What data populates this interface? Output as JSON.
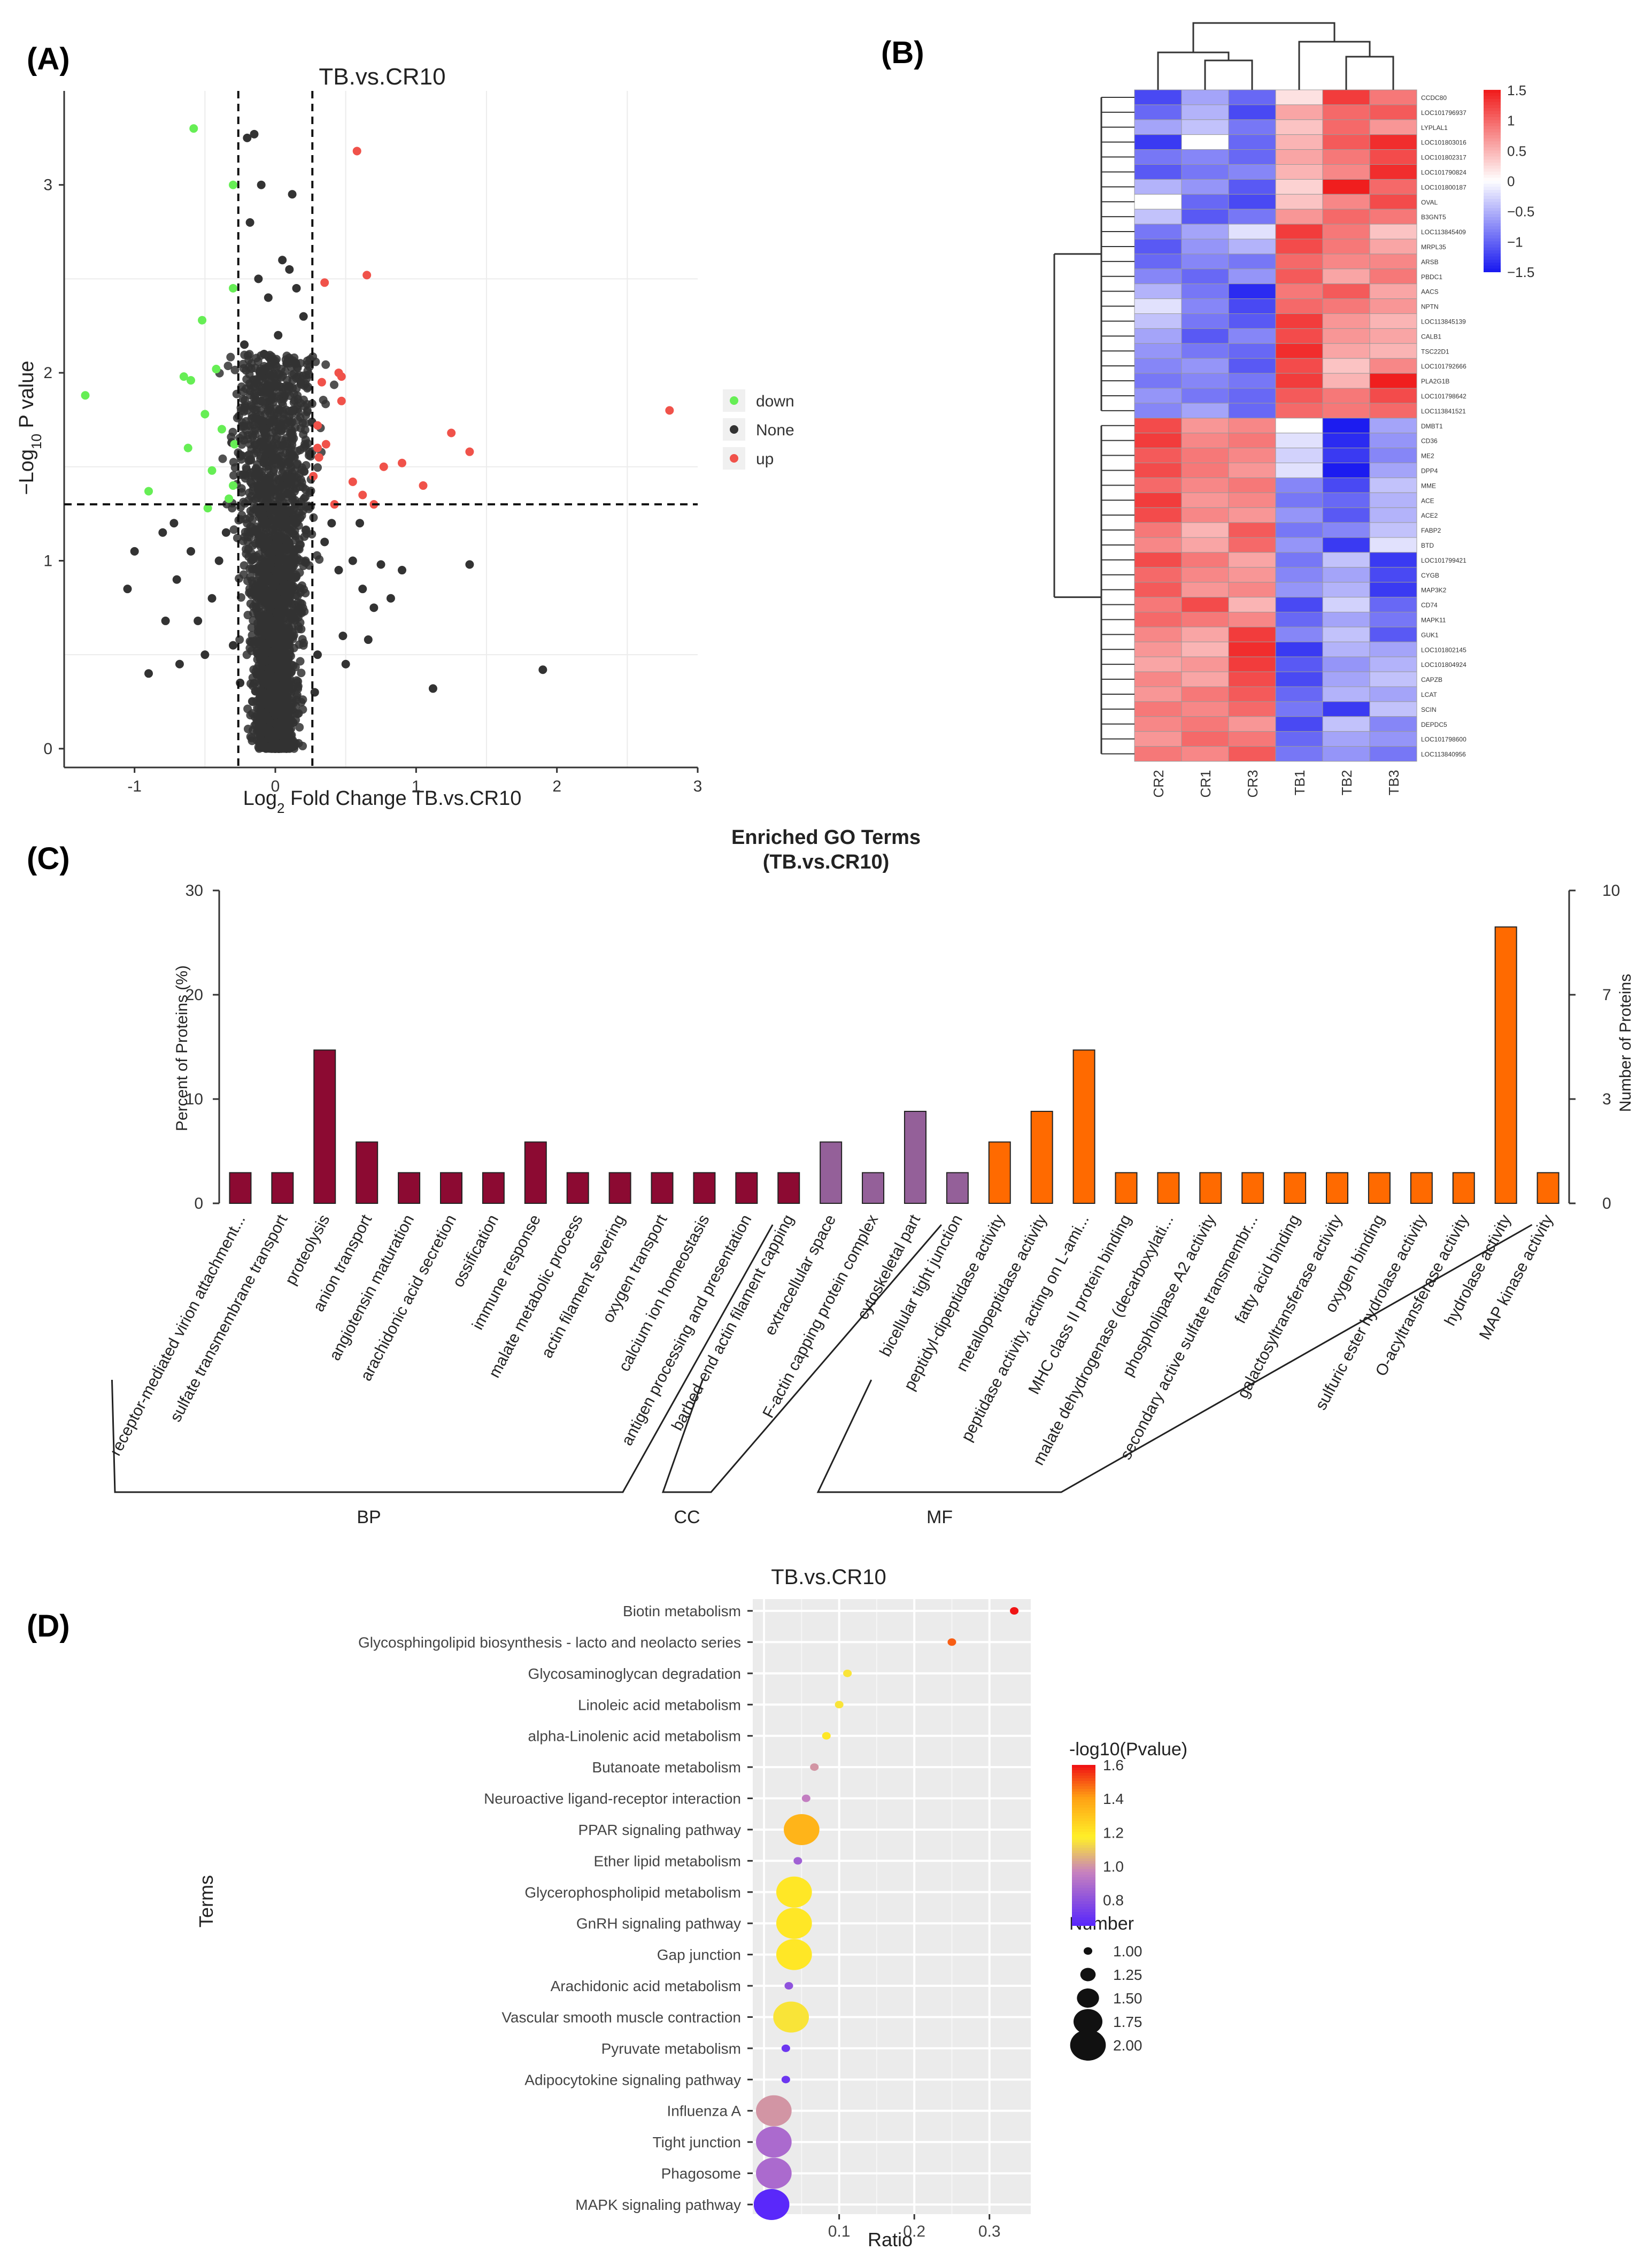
{
  "chart_data": [
    {
      "panel": "(A)",
      "type": "scatter",
      "title": "TB.vs.CR10",
      "xlabel_main": "Log",
      "xlabel_sub": "2",
      "xlabel_rest": " Fold Change TB.vs.CR10",
      "ylabel_main": "−Log",
      "ylabel_sub": "10",
      "ylabel_rest": " P value",
      "xlim": [
        -1.5,
        3
      ],
      "ylim": [
        -0.1,
        3.5
      ],
      "xticks": [
        -1,
        0,
        1,
        2,
        3
      ],
      "yticks": [
        0,
        1,
        2,
        3
      ],
      "thresholds": {
        "x": [
          -0.263,
          0.263
        ],
        "y": 1.3
      },
      "legend": [
        "down",
        "None",
        "up"
      ],
      "colors": {
        "down": "#66ee55",
        "None": "#333333",
        "up": "#f0524a"
      },
      "series": [
        {
          "name": "down",
          "points": [
            [
              -1.35,
              1.88
            ],
            [
              -0.9,
              1.37
            ],
            [
              -0.62,
              1.6
            ],
            [
              -0.65,
              1.98
            ],
            [
              -0.6,
              1.96
            ],
            [
              -0.5,
              1.78
            ],
            [
              -0.52,
              2.28
            ],
            [
              -0.42,
              2.02
            ],
            [
              -0.58,
              3.3
            ],
            [
              -0.45,
              1.48
            ],
            [
              -0.38,
              1.7
            ],
            [
              -0.33,
              1.33
            ],
            [
              -0.3,
              1.4
            ],
            [
              -0.29,
              1.62
            ],
            [
              -0.3,
              2.45
            ],
            [
              -0.3,
              3.0
            ],
            [
              -0.48,
              1.28
            ]
          ]
        },
        {
          "name": "up",
          "points": [
            [
              0.58,
              3.18
            ],
            [
              0.65,
              2.52
            ],
            [
              0.35,
              2.48
            ],
            [
              0.33,
              1.95
            ],
            [
              0.3,
              1.72
            ],
            [
              0.3,
              1.6
            ],
            [
              0.36,
              1.62
            ],
            [
              0.47,
              1.85
            ],
            [
              0.47,
              1.98
            ],
            [
              0.45,
              2.0
            ],
            [
              0.27,
              1.45
            ],
            [
              0.55,
              1.42
            ],
            [
              0.62,
              1.35
            ],
            [
              0.77,
              1.5
            ],
            [
              0.9,
              1.52
            ],
            [
              1.05,
              1.4
            ],
            [
              1.25,
              1.68
            ],
            [
              1.38,
              1.58
            ],
            [
              2.8,
              1.8
            ],
            [
              0.42,
              1.3
            ],
            [
              0.7,
              1.3
            ],
            [
              0.31,
              1.55
            ]
          ]
        },
        {
          "name": "None",
          "points": [
            [
              -1.05,
              0.85
            ],
            [
              -1.0,
              1.05
            ],
            [
              -0.9,
              0.4
            ],
            [
              -0.78,
              0.68
            ],
            [
              -0.7,
              0.9
            ],
            [
              -0.68,
              0.45
            ],
            [
              -0.6,
              1.05
            ],
            [
              -0.55,
              0.68
            ],
            [
              -0.8,
              1.15
            ],
            [
              -0.72,
              1.2
            ],
            [
              0.82,
              0.8
            ],
            [
              0.9,
              0.95
            ],
            [
              1.38,
              0.98
            ],
            [
              1.12,
              0.32
            ],
            [
              1.9,
              0.42
            ],
            [
              0.7,
              0.75
            ],
            [
              0.62,
              0.85
            ],
            [
              0.66,
              0.58
            ],
            [
              0.48,
              0.6
            ],
            [
              0.55,
              1.0
            ],
            [
              0.6,
              1.2
            ],
            [
              0.75,
              0.98
            ],
            [
              -0.2,
              3.25
            ],
            [
              -0.15,
              3.27
            ],
            [
              -0.1,
              3.0
            ],
            [
              0.12,
              2.95
            ],
            [
              -0.18,
              2.8
            ],
            [
              0.05,
              2.6
            ],
            [
              0.1,
              2.55
            ],
            [
              0.15,
              2.45
            ],
            [
              -0.12,
              2.5
            ],
            [
              -0.05,
              2.4
            ],
            [
              0.02,
              2.2
            ],
            [
              -0.08,
              2.1
            ],
            [
              0.08,
              2.05
            ],
            [
              0.2,
              2.3
            ],
            [
              -0.22,
              2.15
            ],
            [
              0.18,
              1.95
            ],
            [
              -0.1,
              1.85
            ],
            [
              0.12,
              1.8
            ],
            [
              -0.35,
              1.15
            ],
            [
              0.35,
              1.1
            ],
            [
              0.4,
              1.2
            ],
            [
              -0.4,
              1.0
            ],
            [
              0.45,
              0.95
            ],
            [
              -0.45,
              0.8
            ],
            [
              0.3,
              0.5
            ],
            [
              -0.3,
              0.55
            ],
            [
              0.28,
              0.3
            ],
            [
              -0.25,
              0.35
            ],
            [
              0.5,
              0.45
            ],
            [
              -0.5,
              0.5
            ]
          ]
        }
      ]
    },
    {
      "panel": "(B)",
      "type": "heatmap",
      "columns": [
        "CR2",
        "CR1",
        "CR3",
        "TB1",
        "TB2",
        "TB3"
      ],
      "rows": [
        "CCDC80",
        "LOC101796937",
        "LYPLAL1",
        "LOC101803016",
        "LOC101802317",
        "LOC101790824",
        "LOC101800187",
        "OVAL",
        "B3GNT5",
        "LOC113845409",
        "MRPL35",
        "ARSB",
        "PBDC1",
        "AACS",
        "NPTN",
        "LOC113845139",
        "CALB1",
        "TSC22D1",
        "LOC101792666",
        "PLA2G1B",
        "LOC101798642",
        "LOC113841521",
        "DMBT1",
        "CD36",
        "ME2",
        "DPP4",
        "MME",
        "ACE",
        "ACE2",
        "FABP2",
        "BTD",
        "LOC101799421",
        "CYGB",
        "MAP3K2",
        "CD74",
        "MAPK11",
        "GUK1",
        "LOC101802145",
        "LOC101804924",
        "CAPZB",
        "LCAT",
        "SCIN",
        "DEPDC5",
        "LOC101798600",
        "LOC113840956"
      ],
      "values": [
        [
          -1.2,
          -0.6,
          -1.0,
          0.2,
          1.3,
          0.9
        ],
        [
          -1.0,
          -0.5,
          -1.2,
          0.6,
          1.0,
          1.1
        ],
        [
          -0.6,
          -0.4,
          -0.9,
          0.4,
          1.0,
          0.7
        ],
        [
          -1.3,
          0.0,
          -1.0,
          0.5,
          1.1,
          1.4
        ],
        [
          -0.9,
          -0.8,
          -1.0,
          0.6,
          0.9,
          1.2
        ],
        [
          -1.1,
          -0.9,
          -0.8,
          0.5,
          0.8,
          1.4
        ],
        [
          -0.5,
          -0.7,
          -1.1,
          0.3,
          1.5,
          1.0
        ],
        [
          0.0,
          -1.0,
          -1.2,
          0.4,
          0.8,
          1.2
        ],
        [
          -0.4,
          -1.1,
          -0.9,
          0.7,
          1.0,
          0.9
        ],
        [
          -0.9,
          -0.6,
          -0.2,
          1.3,
          0.9,
          0.4
        ],
        [
          -1.1,
          -0.7,
          -0.5,
          1.2,
          0.9,
          0.6
        ],
        [
          -1.0,
          -0.8,
          -0.9,
          1.0,
          0.8,
          0.8
        ],
        [
          -0.8,
          -1.0,
          -0.7,
          1.1,
          0.6,
          0.9
        ],
        [
          -0.5,
          -0.9,
          -1.4,
          0.9,
          1.1,
          0.6
        ],
        [
          -0.2,
          -0.8,
          -1.2,
          1.0,
          0.9,
          0.7
        ],
        [
          -0.4,
          -0.9,
          -1.1,
          1.3,
          0.7,
          0.5
        ],
        [
          -0.6,
          -1.1,
          -0.8,
          1.2,
          0.7,
          0.6
        ],
        [
          -0.7,
          -0.9,
          -1.0,
          1.4,
          0.6,
          0.5
        ],
        [
          -0.8,
          -0.7,
          -1.1,
          1.2,
          0.4,
          0.8
        ],
        [
          -0.9,
          -0.8,
          -0.9,
          1.3,
          0.5,
          1.5
        ],
        [
          -0.7,
          -0.9,
          -1.0,
          1.1,
          0.9,
          1.2
        ],
        [
          -0.8,
          -0.6,
          -1.0,
          1.0,
          0.9,
          1.0
        ],
        [
          1.2,
          0.7,
          0.8,
          0.0,
          -1.5,
          -0.6
        ],
        [
          1.3,
          0.8,
          0.9,
          -0.2,
          -1.4,
          -0.7
        ],
        [
          1.1,
          0.9,
          0.8,
          -0.3,
          -1.3,
          -0.8
        ],
        [
          1.2,
          0.9,
          0.7,
          -0.2,
          -1.5,
          -0.6
        ],
        [
          1.0,
          0.8,
          0.9,
          -0.8,
          -1.2,
          -0.4
        ],
        [
          1.3,
          0.7,
          0.8,
          -0.9,
          -1.0,
          -0.5
        ],
        [
          1.2,
          0.8,
          0.7,
          -0.7,
          -1.1,
          -0.5
        ],
        [
          0.9,
          0.5,
          1.1,
          -0.9,
          -0.8,
          -0.4
        ],
        [
          0.8,
          0.6,
          1.0,
          -0.7,
          -1.3,
          -0.2
        ],
        [
          1.2,
          0.9,
          0.6,
          -0.9,
          -0.4,
          -1.3
        ],
        [
          1.0,
          0.8,
          0.7,
          -0.8,
          -0.6,
          -1.2
        ],
        [
          1.1,
          0.7,
          0.8,
          -0.7,
          -0.5,
          -1.3
        ],
        [
          0.9,
          1.2,
          0.5,
          -1.2,
          -0.3,
          -1.0
        ],
        [
          1.0,
          0.9,
          0.8,
          -1.0,
          -0.6,
          -0.9
        ],
        [
          0.8,
          0.6,
          1.3,
          -0.8,
          -0.4,
          -1.1
        ],
        [
          0.7,
          0.5,
          1.4,
          -1.3,
          -0.5,
          -0.6
        ],
        [
          0.6,
          0.7,
          1.3,
          -1.1,
          -0.7,
          -0.5
        ],
        [
          0.8,
          0.6,
          1.2,
          -1.2,
          -0.6,
          -0.4
        ],
        [
          0.7,
          0.9,
          1.1,
          -1.0,
          -0.5,
          -0.6
        ],
        [
          0.9,
          0.8,
          1.0,
          -0.9,
          -1.3,
          -0.4
        ],
        [
          0.8,
          0.9,
          0.7,
          -1.2,
          -0.4,
          -0.8
        ],
        [
          0.7,
          1.0,
          0.9,
          -1.0,
          -0.6,
          -0.7
        ],
        [
          0.9,
          0.8,
          1.1,
          -0.9,
          -0.7,
          -0.9
        ]
      ],
      "colorbar": {
        "min": -1.5,
        "max": 1.5,
        "ticks": [
          "1.5",
          "1",
          "0.5",
          "0",
          "−0.5",
          "−1",
          "−1.5"
        ]
      }
    },
    {
      "panel": "(C)",
      "type": "bar",
      "title": "Enriched GO Terms",
      "subtitle": "(TB.vs.CR10)",
      "ylabel_left": "Percent of Proteins (%)",
      "ylabel_right": "Number of Proteins",
      "ylim_left": [
        0,
        30
      ],
      "yticks_left": [
        0,
        10,
        20,
        30
      ],
      "yticks_right": [
        "0",
        "3",
        "7",
        "10"
      ],
      "categories": [
        "receptor-mediated virion attachment...",
        "sulfate transmembrane transport",
        "proteolysis",
        "anion transport",
        "angiotensin maturation",
        "arachidonic acid secretion",
        "ossification",
        "immune response",
        "malate metabolic process",
        "actin filament severing",
        "oxygen transport",
        "calcium ion homeostasis",
        "antigen processing and presentation",
        "barbed-end actin filament capping",
        "extracellular space",
        "F-actin capping protein complex",
        "cytoskeletal part",
        "bicellular tight junction",
        "peptidyl-dipeptidase activity",
        "metallopeptidase activity",
        "peptidase activity, acting on L-ami...",
        "MHC class II protein binding",
        "malate dehydrogenase (decarboxylati...",
        "phospholipase A2 activity",
        "secondary active sulfate transmembr...",
        "fatty acid binding",
        "galactosyltransferase activity",
        "oxygen binding",
        "sulfuric ester hydrolase activity",
        "O-acyltransferase activity",
        "hydrolase activity",
        "MAP kinase activity"
      ],
      "values": [
        2.94,
        2.94,
        14.7,
        5.88,
        2.94,
        2.94,
        2.94,
        5.88,
        2.94,
        2.94,
        2.94,
        2.94,
        2.94,
        2.94,
        5.88,
        2.94,
        8.82,
        2.94,
        5.88,
        8.82,
        14.7,
        2.94,
        2.94,
        2.94,
        2.94,
        2.94,
        2.94,
        2.94,
        2.94,
        2.94,
        26.5,
        2.94
      ],
      "groups": [
        {
          "name": "BP",
          "start": 0,
          "end": 13,
          "color": "#8c0a32"
        },
        {
          "name": "CC",
          "start": 14,
          "end": 17,
          "color": "#946099"
        },
        {
          "name": "MF",
          "start": 18,
          "end": 31,
          "color": "#ff6a00"
        }
      ]
    },
    {
      "panel": "(D)",
      "type": "scatter",
      "title": "TB.vs.CR10",
      "xlabel": "Ratio",
      "ylabel": "Terms",
      "xlim": [
        -0.015,
        0.355
      ],
      "xticks": [
        0.1,
        0.2,
        0.3
      ],
      "terms": [
        "Biotin metabolism",
        "Glycosphingolipid biosynthesis - lacto and neolacto series",
        "Glycosaminoglycan degradation",
        "Linoleic acid metabolism",
        "alpha-Linolenic acid metabolism",
        "Butanoate metabolism",
        "Neuroactive ligand-receptor interaction",
        "PPAR signaling pathway",
        "Ether lipid metabolism",
        "Glycerophospholipid metabolism",
        "GnRH signaling pathway",
        "Gap junction",
        "Arachidonic acid metabolism",
        "Vascular smooth muscle contraction",
        "Pyruvate metabolism",
        "Adipocytokine signaling pathway",
        "Influenza A",
        "Tight junction",
        "Phagosome",
        "MAPK signaling pathway"
      ],
      "ratio": [
        0.333,
        0.25,
        0.111,
        0.1,
        0.083,
        0.067,
        0.056,
        0.05,
        0.045,
        0.04,
        0.04,
        0.04,
        0.033,
        0.036,
        0.029,
        0.029,
        0.013,
        0.013,
        0.013,
        0.01
      ],
      "pvalue": [
        1.6,
        1.5,
        1.15,
        1.15,
        1.2,
        1.0,
        0.95,
        1.35,
        0.85,
        1.2,
        1.2,
        1.2,
        0.8,
        1.15,
        0.7,
        0.7,
        1.0,
        0.88,
        0.88,
        0.65
      ],
      "number": [
        1,
        1,
        1,
        1,
        1,
        1,
        1,
        2,
        1,
        2,
        2,
        2,
        1,
        2,
        1,
        1,
        2,
        2,
        2,
        2
      ],
      "colorbar": {
        "title": "-log10(Pvalue)",
        "min": 0.65,
        "max": 1.6,
        "ticks": [
          "1.6",
          "1.4",
          "1.2",
          "1.0",
          "0.8"
        ]
      },
      "size_legend": {
        "title": "Number",
        "labels": [
          "1.00",
          "1.25",
          "1.50",
          "1.75",
          "2.00"
        ]
      }
    }
  ]
}
